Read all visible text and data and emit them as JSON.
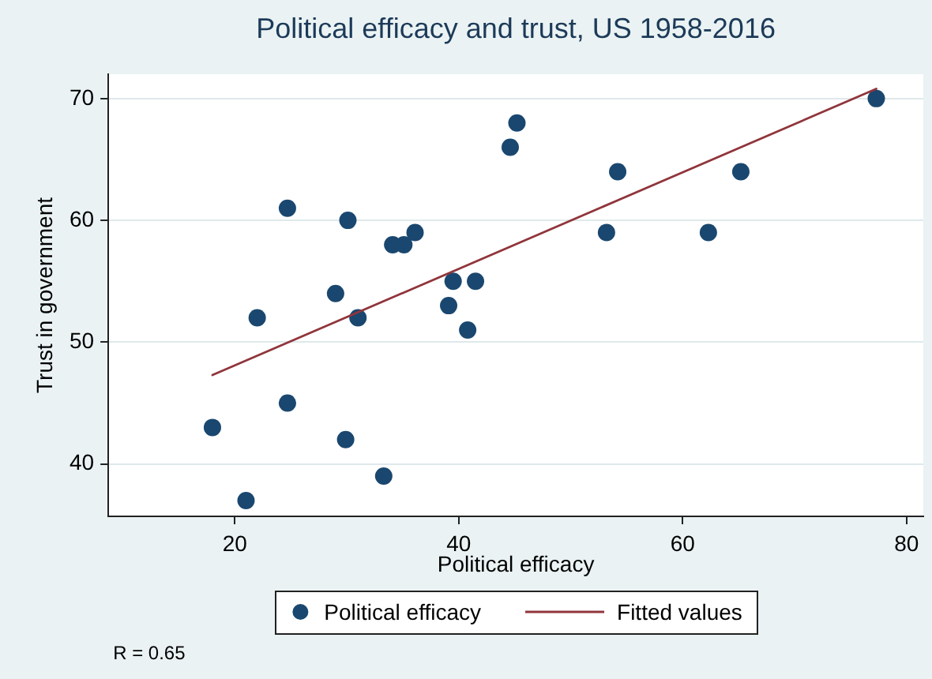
{
  "chart_data": {
    "type": "scatter",
    "title": "Political efficacy and trust, US 1958-2016",
    "xlabel": "Political efficacy",
    "ylabel": "Trust in government",
    "annotations": [
      "R = 0.65"
    ],
    "xlim": [
      8.7,
      81.5
    ],
    "ylim": [
      35.7,
      72
    ],
    "xticks": [
      20,
      40,
      60,
      80
    ],
    "yticks": [
      40,
      50,
      60,
      70
    ],
    "grid": "y",
    "legend": "bottom",
    "marker": "circle",
    "series": [
      {
        "name": "Political efficacy",
        "type": "scatter",
        "color": "#1a476f",
        "x": [
          18,
          21,
          22,
          24.7,
          24.7,
          29,
          30.1,
          29.9,
          31,
          33.3,
          34.1,
          35.1,
          36.1,
          39.1,
          39.5,
          40.8,
          41.5,
          44.6,
          45.2,
          53.2,
          54.2,
          62.3,
          65.2,
          77.3
        ],
        "values": [
          43,
          37,
          52,
          61,
          45,
          54,
          60,
          42,
          52,
          39,
          58,
          58,
          59,
          53,
          55,
          51,
          55,
          66,
          68,
          59,
          64,
          59,
          64,
          70
        ]
      },
      {
        "name": "Fitted values",
        "type": "line",
        "color": "#90353b",
        "marker": "none",
        "x": [
          18,
          77.3
        ],
        "values": [
          47.3,
          70.8
        ]
      }
    ]
  }
}
